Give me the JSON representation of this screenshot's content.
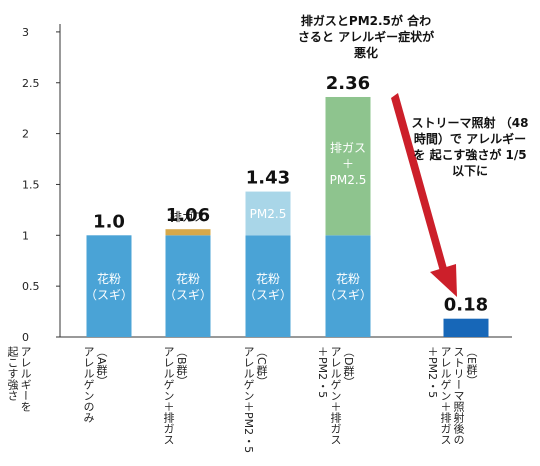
{
  "chart_data": {
    "type": "bar",
    "ylabel": "アレルギーを\n起こす強さ",
    "ylim": [
      0,
      3
    ],
    "yticks": [
      "0",
      "0.5",
      "1",
      "1.5",
      "2",
      "2.5",
      "3"
    ],
    "grid": false,
    "categories": [
      "（A群）\nアレルゲンのみ",
      "（B群）\nアレルゲン＋排ガス",
      "（C群）\nアレルゲン＋PM2・5",
      "（D群）\nアレルゲン＋排ガス\n＋PM2・5",
      "（E群）\nストリーマ照射後の\nアレルゲン＋排ガス\n＋PM2・5"
    ],
    "totals": [
      "1.0",
      "1.06",
      "1.43",
      "2.36",
      "0.18"
    ],
    "series": [
      {
        "name": "花粉（スギ）",
        "values": [
          1.0,
          1.0,
          1.0,
          1.0,
          0
        ],
        "color": "#4aa3d6"
      },
      {
        "name": "排ガス",
        "values": [
          0,
          0.06,
          0,
          0,
          0
        ],
        "color": "#d6a84a"
      },
      {
        "name": "PM2.5",
        "values": [
          0,
          0,
          0.43,
          0,
          0
        ],
        "color": "#a9d6e8"
      },
      {
        "name": "排ガス＋PM2.5",
        "values": [
          0,
          0,
          0,
          1.36,
          0
        ],
        "color": "#8ec48e"
      },
      {
        "name": "ストリーマ照射後",
        "values": [
          0,
          0,
          0,
          0,
          0.18
        ],
        "color": "#1767b8"
      }
    ],
    "bar_labels": {
      "pollen": "花粉\n（スギ）",
      "exhaust": "排ガス",
      "pm": "PM2.5",
      "combo": "排ガス\n＋\nPM2.5"
    },
    "annotations": {
      "top": "排ガスとPM2.5が\n合わさると\nアレルギー症状が悪化",
      "right": "ストリーマ照射\n（48時間）で\nアレルギーを\n起こす強さが\n1/5以下に"
    },
    "colors": {
      "arrow": "#cc1f2a",
      "axis": "#333333"
    }
  }
}
